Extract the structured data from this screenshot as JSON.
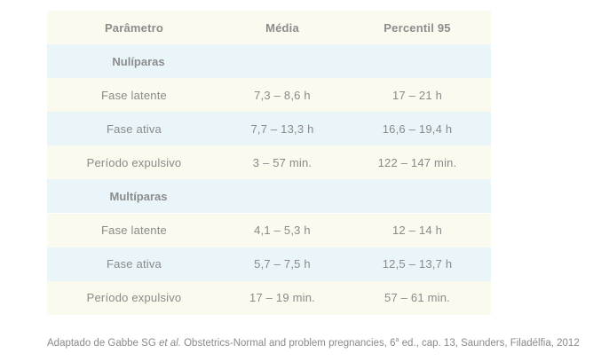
{
  "table": {
    "headers": [
      "Parâmetro",
      "Média",
      "Percentil 95"
    ],
    "groups": [
      {
        "name": "Nulíparas",
        "rows": [
          [
            "Fase latente",
            "7,3 – 8,6 h",
            "17 – 21 h"
          ],
          [
            "Fase ativa",
            "7,7 – 13,3 h",
            "16,6 – 19,4 h"
          ],
          [
            "Período expulsivo",
            "3 – 57 min.",
            "122 – 147 min."
          ]
        ]
      },
      {
        "name": "Multíparas",
        "rows": [
          [
            "Fase latente",
            "4,1 – 5,3 h",
            "12 – 14 h"
          ],
          [
            "Fase ativa",
            "5,7 – 7,5 h",
            "12,5 – 13,7 h"
          ],
          [
            "Período expulsivo",
            "17 – 19 min.",
            "57 – 61 min."
          ]
        ]
      }
    ]
  },
  "caption": {
    "part1": "Adaptado de Gabbe SG ",
    "italic": "et al.",
    "part2": " Obstetrics-Normal and problem pregnancies, 6",
    "sup": "a",
    "part3": " ed., cap. 13, Saunders, Filadélfia, 2012"
  }
}
